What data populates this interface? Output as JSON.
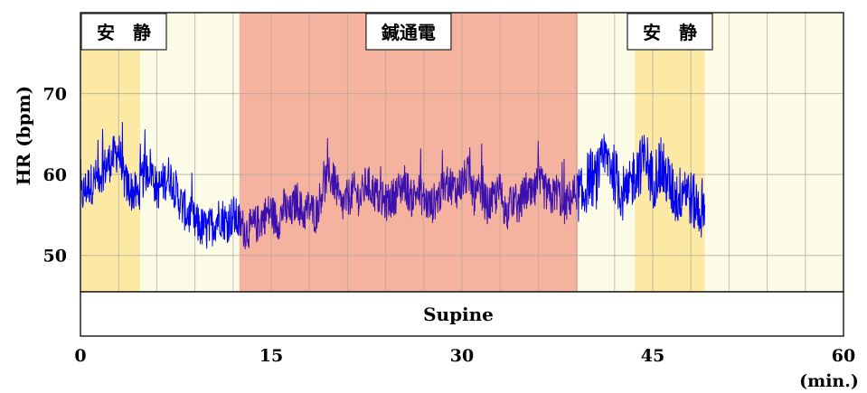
{
  "chart_data": {
    "type": "line",
    "ylabel": "HR (bpm)",
    "xunit": "(min.)",
    "x_ticks": [
      "0",
      "15",
      "30",
      "45",
      "60"
    ],
    "y_ticks": [
      "50",
      "60",
      "70"
    ],
    "xlim": [
      0,
      60
    ],
    "ylim": [
      45.5,
      80
    ],
    "grid": true,
    "phases": [
      {
        "label": "安　静",
        "start": 0,
        "end": 4.7,
        "color": "#fbe9a4"
      },
      {
        "label": "",
        "start": 4.7,
        "end": 12.5,
        "color": "#fbfbe6"
      },
      {
        "label": "鍼通電",
        "start": 12.5,
        "end": 39.1,
        "color": "#f4b29f"
      },
      {
        "label": "",
        "start": 39.1,
        "end": 43.6,
        "color": "#fbfbe6"
      },
      {
        "label": "安　静",
        "start": 43.6,
        "end": 49.1,
        "color": "#fbe9a4"
      },
      {
        "label": "",
        "start": 49.1,
        "end": 60,
        "color": "#fbfbe6"
      }
    ],
    "posture_label": "Supine",
    "series": [
      {
        "color_main": "#0000ee",
        "color_mid": "#5050b4",
        "color_stim": "#3a10b0",
        "x": [
          0,
          0.5,
          1,
          1.5,
          2,
          2.5,
          3,
          3.5,
          4,
          4.5,
          5,
          5.5,
          6,
          6.5,
          7,
          7.5,
          8,
          8.5,
          9,
          9.5,
          10,
          10.5,
          11,
          11.5,
          12,
          12.5,
          13,
          13.5,
          14,
          14.5,
          15,
          15.5,
          16,
          16.5,
          17,
          17.5,
          18,
          18.5,
          19,
          19.5,
          20,
          20.5,
          21,
          21.5,
          22,
          22.5,
          23,
          23.5,
          24,
          24.5,
          25,
          25.5,
          26,
          26.5,
          27,
          27.5,
          28,
          28.5,
          29,
          29.5,
          30,
          30.5,
          31,
          31.5,
          32,
          32.5,
          33,
          33.5,
          34,
          34.5,
          35,
          35.5,
          36,
          36.5,
          37,
          37.5,
          38,
          38.5,
          39,
          39.5,
          40,
          40.5,
          41,
          41.5,
          42,
          42.5,
          43,
          43.5,
          44,
          44.5,
          45,
          45.5,
          46,
          46.5,
          47,
          47.5,
          48,
          48.5,
          49
        ],
        "y": [
          57,
          58.5,
          59,
          60,
          61,
          62,
          63,
          59,
          58,
          57.5,
          60,
          61,
          58,
          59,
          60,
          58,
          56,
          55,
          54,
          53.5,
          53,
          54,
          55,
          54,
          55,
          54,
          53,
          53.5,
          54,
          55,
          55.5,
          54,
          56,
          55,
          57,
          55,
          56,
          55,
          58,
          60,
          59,
          56,
          57,
          58,
          57,
          59,
          58,
          57,
          56.5,
          57,
          58,
          59,
          57,
          58,
          57,
          56,
          57,
          58,
          59,
          58,
          59,
          60,
          57,
          58,
          56,
          57,
          58,
          55,
          57,
          56,
          58,
          57,
          59,
          58,
          57,
          58,
          56,
          57,
          58,
          57,
          60,
          59,
          61,
          62,
          60,
          58,
          57,
          60,
          61,
          62,
          59,
          61,
          60,
          58,
          57,
          59,
          57,
          56,
          55
        ]
      }
    ]
  }
}
